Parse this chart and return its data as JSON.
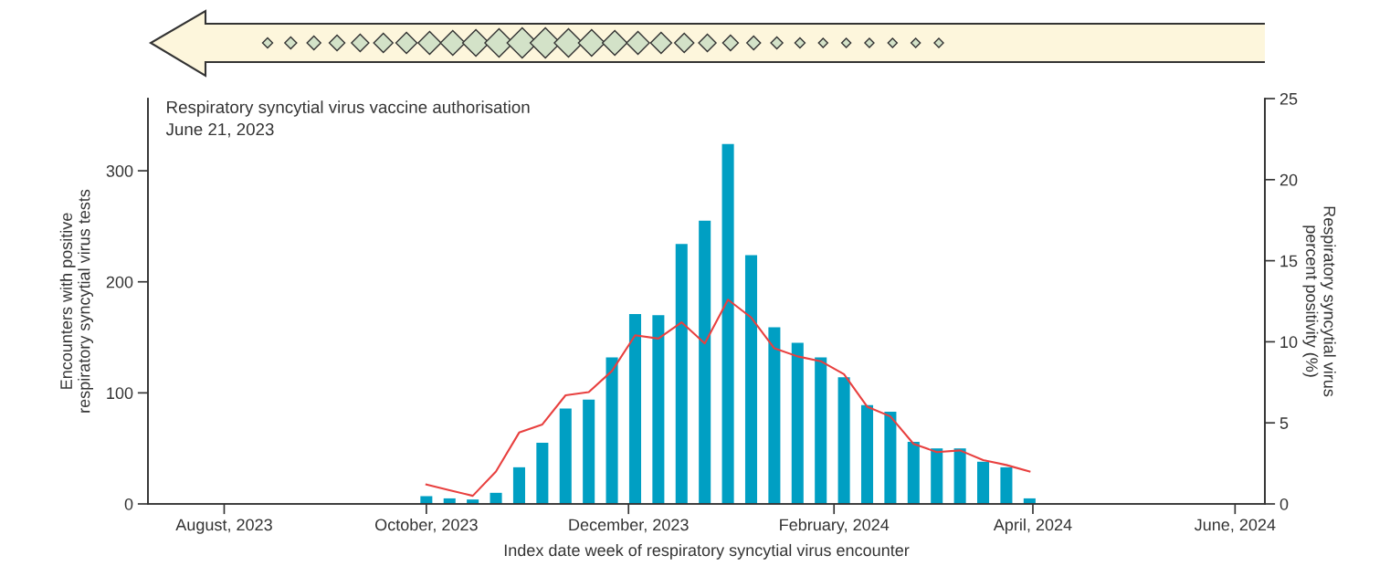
{
  "chart_data": {
    "type": "bar",
    "xlabel": "Index date week of respiratory syncytial virus encounter",
    "ylabel": "Encounters with positive\nrespiratory syncytial virus tests",
    "y2label": "Respiratory syncytial virus\npercent positivity (%)",
    "annotations": [
      "Respiratory syncytial virus vaccine authorisation\nJune 21, 2023"
    ],
    "x": [
      "2023-10-01",
      "2023-10-08",
      "2023-10-15",
      "2023-10-22",
      "2023-10-29",
      "2023-11-05",
      "2023-11-12",
      "2023-11-19",
      "2023-11-26",
      "2023-12-03",
      "2023-12-10",
      "2023-12-17",
      "2023-12-24",
      "2023-12-31",
      "2024-01-07",
      "2024-01-14",
      "2024-01-21",
      "2024-01-28",
      "2024-02-04",
      "2024-02-11",
      "2024-02-18",
      "2024-02-25",
      "2024-03-03",
      "2024-03-10",
      "2024-03-17",
      "2024-03-24",
      "2024-03-31"
    ],
    "series": [
      {
        "color": "#009fc3",
        "values": [
          7,
          5,
          4,
          10,
          33,
          55,
          86,
          94,
          132,
          171,
          170,
          234,
          255,
          324,
          224,
          159,
          145,
          132,
          114,
          89,
          83,
          56,
          50,
          50,
          38,
          33,
          5
        ]
      },
      {
        "type": "line",
        "axis": "y2",
        "color": "#e8403f",
        "values": [
          1.2,
          0.85,
          0.5,
          2.0,
          4.4,
          4.9,
          6.7,
          6.9,
          8.2,
          10.4,
          10.2,
          11.2,
          9.9,
          12.6,
          11.5,
          9.6,
          9.1,
          8.8,
          8.0,
          6.0,
          5.4,
          3.7,
          3.2,
          3.3,
          2.7,
          2.4,
          2.0
        ]
      }
    ],
    "xlim": [
      "2023-07-09",
      "2024-06-10"
    ],
    "xticks": [
      {
        "value": "2023-08-01",
        "label": "August, 2023"
      },
      {
        "value": "2023-10-01",
        "label": "October, 2023"
      },
      {
        "value": "2023-12-01",
        "label": "December, 2023"
      },
      {
        "value": "2024-02-01",
        "label": "February, 2024"
      },
      {
        "value": "2024-04-01",
        "label": "April, 2024"
      },
      {
        "value": "2024-06-01",
        "label": "June, 2024"
      }
    ],
    "ylim": [
      0,
      365
    ],
    "yticks": [
      0,
      100,
      200,
      300
    ],
    "y2lim": [
      0,
      25
    ],
    "y2ticks": [
      0,
      5,
      10,
      15,
      20,
      25
    ],
    "grid": false,
    "legend": false
  }
}
